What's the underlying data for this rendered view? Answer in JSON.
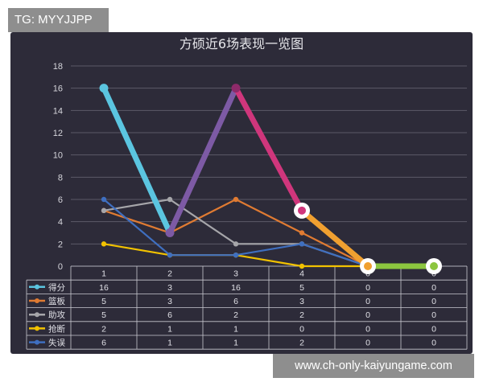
{
  "watermark_top": "TG: MYYJJPP",
  "watermark_bottom": "www.ch-only-kaiyungame.com",
  "chart_data": {
    "type": "line",
    "title": "方硕近6场表现一览图",
    "categories": [
      "1",
      "2",
      "3",
      "4",
      "0",
      "0"
    ],
    "ylim": [
      0,
      18
    ],
    "yticks": [
      0,
      2,
      4,
      6,
      8,
      10,
      12,
      14,
      16,
      18
    ],
    "grid": true,
    "legend_placement": "data-table-left",
    "series": [
      {
        "name": "得分",
        "values": [
          16,
          3,
          16,
          5,
          0,
          0
        ],
        "color": "#5bc5e0",
        "segment_colors": [
          "#5bc5e0",
          "#7d5aa5",
          "#d0367c",
          "#f0a030",
          "#8cc63f"
        ]
      },
      {
        "name": "篮板",
        "values": [
          5,
          3,
          6,
          3,
          0,
          0
        ],
        "color": "#e07b32"
      },
      {
        "name": "助攻",
        "values": [
          5,
          6,
          2,
          2,
          0,
          0
        ],
        "color": "#a6a6aa"
      },
      {
        "name": "抢断",
        "values": [
          2,
          1,
          1,
          0,
          0,
          0
        ],
        "color": "#f2c200"
      },
      {
        "name": "失误",
        "values": [
          6,
          1,
          1,
          2,
          0,
          0
        ],
        "color": "#3f6fc0"
      }
    ]
  }
}
